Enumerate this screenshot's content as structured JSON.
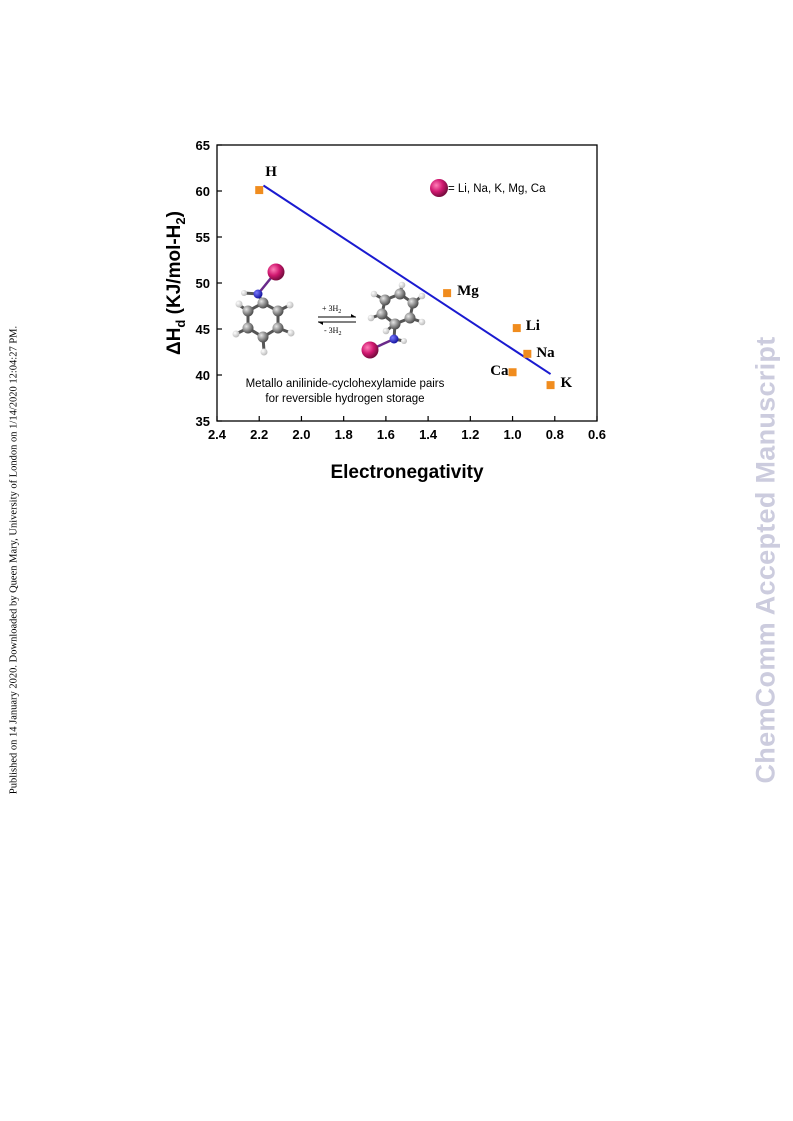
{
  "side_note": "Published on 14 January 2020. Downloaded by Queen Mary, University of London on 1/14/2020 12:04:27 PM.",
  "watermark": "ChemComm Accepted Manuscript",
  "chart_data": {
    "type": "scatter",
    "xlabel": "Electronegativity",
    "ylabel_main": "ΔH",
    "ylabel_sub": "d",
    "ylabel_rest": " (KJ/mol-H",
    "ylabel_sub2": "2",
    "ylabel_end": ")",
    "xlim": [
      2.4,
      0.6
    ],
    "x_reversed": true,
    "ylim": [
      35,
      65
    ],
    "xticks": [
      "2.4",
      "2.2",
      "2.0",
      "1.8",
      "1.6",
      "1.4",
      "1.2",
      "1.0",
      "0.8",
      "0.6"
    ],
    "yticks": [
      "35",
      "40",
      "45",
      "50",
      "55",
      "60",
      "65"
    ],
    "marker_color": "#f08c1e",
    "line_color": "#1a1ad0",
    "points": [
      {
        "label": "H",
        "x": 2.2,
        "y": 60.1
      },
      {
        "label": "Mg",
        "x": 1.31,
        "y": 48.9
      },
      {
        "label": "Li",
        "x": 0.98,
        "y": 45.1
      },
      {
        "label": "Na",
        "x": 0.93,
        "y": 42.3
      },
      {
        "label": "Ca",
        "x": 1.0,
        "y": 40.3
      },
      {
        "label": "K",
        "x": 0.82,
        "y": 38.9
      }
    ],
    "fit_line": {
      "x": [
        2.18,
        0.82
      ],
      "y": [
        60.6,
        40.1
      ]
    },
    "legend": {
      "text": "= Li, Na, K, Mg, Ca",
      "sphere_color": "#d01870"
    },
    "inset": {
      "caption_line1": "Metallo anilinide-cyclohexylamide pairs",
      "caption_line2": "for reversible hydrogen storage",
      "forward_label": "+ 3H",
      "forward_sub": "2",
      "reverse_label": "- 3H",
      "reverse_sub": "2"
    }
  }
}
